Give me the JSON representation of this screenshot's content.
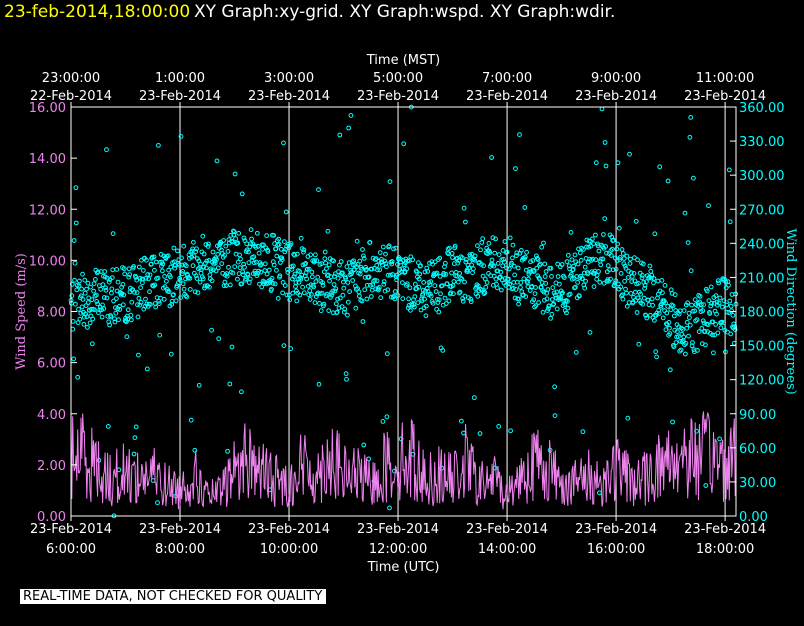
{
  "header": {
    "timestamp": "23-feb-2014,18:00:00",
    "titles": "XY Graph:xy-grid.  XY Graph:wspd.  XY Graph:wdir."
  },
  "notice": "REAL-TIME DATA, NOT CHECKED FOR QUALITY",
  "colors": {
    "background": "#000000",
    "timestamp": "#ffff00",
    "wind_speed": "#ee82ee",
    "wind_direction": "#00ffff",
    "frame": "#ffffff"
  },
  "chart_data": {
    "type": "line",
    "top_axis_label": "Time (MST)",
    "bottom_axis_label": "Time (UTC)",
    "y_left_label": "Wind Speed (m/s)",
    "y_right_label": "Wind Direction (degrees)",
    "x_range_utc_hours": [
      6,
      18.2
    ],
    "y_left_range": [
      0,
      16
    ],
    "y_right_range": [
      0,
      360
    ],
    "grid": "vertical lines every 2 hours",
    "bottom_ticks": [
      {
        "hour": 6,
        "date": "23-Feb-2014",
        "time": "6:00:00"
      },
      {
        "hour": 8,
        "date": "23-Feb-2014",
        "time": "8:00:00"
      },
      {
        "hour": 10,
        "date": "23-Feb-2014",
        "time": "10:00:00"
      },
      {
        "hour": 12,
        "date": "23-Feb-2014",
        "time": "12:00:00"
      },
      {
        "hour": 14,
        "date": "23-Feb-2014",
        "time": "14:00:00"
      },
      {
        "hour": 16,
        "date": "23-Feb-2014",
        "time": "16:00:00"
      },
      {
        "hour": 18,
        "date": "23-Feb-2014",
        "time": "18:00:00"
      }
    ],
    "top_ticks": [
      {
        "hour": 6,
        "time": "23:00:00",
        "date": "22-Feb-2014"
      },
      {
        "hour": 8,
        "time": "1:00:00",
        "date": "23-Feb-2014"
      },
      {
        "hour": 10,
        "time": "3:00:00",
        "date": "23-Feb-2014"
      },
      {
        "hour": 12,
        "time": "5:00:00",
        "date": "23-Feb-2014"
      },
      {
        "hour": 14,
        "time": "7:00:00",
        "date": "23-Feb-2014"
      },
      {
        "hour": 16,
        "time": "9:00:00",
        "date": "23-Feb-2014"
      },
      {
        "hour": 18,
        "time": "11:00:00",
        "date": "23-Feb-2014"
      }
    ],
    "y_left_ticks": [
      "0.00",
      "2.00",
      "4.00",
      "6.00",
      "8.00",
      "10.00",
      "12.00",
      "14.00",
      "16.00"
    ],
    "y_right_ticks": [
      "0.00",
      "30.00",
      "60.00",
      "90.00",
      "120.00",
      "150.00",
      "180.00",
      "210.00",
      "240.00",
      "270.00",
      "300.00",
      "330.00",
      "360.00"
    ],
    "series": [
      {
        "name": "Wind Speed",
        "style": "line",
        "x": [
          6.0,
          6.25,
          6.5,
          6.75,
          7.0,
          7.25,
          7.5,
          7.75,
          8.0,
          8.25,
          8.5,
          8.75,
          9.0,
          9.25,
          9.5,
          9.75,
          10.0,
          10.25,
          10.5,
          10.75,
          11.0,
          11.25,
          11.5,
          11.75,
          12.0,
          12.25,
          12.5,
          12.75,
          13.0,
          13.25,
          13.5,
          13.75,
          14.0,
          14.25,
          14.5,
          14.75,
          15.0,
          15.25,
          15.5,
          15.75,
          16.0,
          16.25,
          16.5,
          16.75,
          17.0,
          17.25,
          17.5,
          17.75,
          18.0,
          18.2
        ],
        "values": [
          2.3,
          2.5,
          1.8,
          1.4,
          1.7,
          1.5,
          1.6,
          1.2,
          1.0,
          1.6,
          0.8,
          0.9,
          1.8,
          2.3,
          1.7,
          1.4,
          1.2,
          2.0,
          1.5,
          2.4,
          1.6,
          1.6,
          1.2,
          1.9,
          2.1,
          2.3,
          1.4,
          1.6,
          1.4,
          2.1,
          1.2,
          1.5,
          0.8,
          1.6,
          2.1,
          1.9,
          1.3,
          1.3,
          1.5,
          1.3,
          1.9,
          1.4,
          1.4,
          1.9,
          2.2,
          2.4,
          2.3,
          2.4,
          2.0,
          2.6
        ],
        "y_range": [
          0,
          4.8
        ]
      },
      {
        "name": "Wind Direction",
        "style": "circles",
        "x": [
          6.0,
          6.25,
          6.5,
          6.75,
          7.0,
          7.25,
          7.5,
          7.75,
          8.0,
          8.25,
          8.5,
          8.75,
          9.0,
          9.25,
          9.5,
          9.75,
          10.0,
          10.25,
          10.5,
          10.75,
          11.0,
          11.25,
          11.5,
          11.75,
          12.0,
          12.25,
          12.5,
          12.75,
          13.0,
          13.25,
          13.5,
          13.75,
          14.0,
          14.25,
          14.5,
          14.75,
          15.0,
          15.25,
          15.5,
          15.75,
          16.0,
          16.25,
          16.5,
          16.75,
          17.0,
          17.25,
          17.5,
          17.75,
          18.0,
          18.2
        ],
        "values": [
          185,
          190,
          195,
          192,
          195,
          200,
          205,
          208,
          215,
          220,
          225,
          218,
          230,
          228,
          225,
          222,
          215,
          220,
          212,
          205,
          200,
          205,
          218,
          215,
          210,
          205,
          200,
          208,
          215,
          210,
          218,
          225,
          220,
          210,
          205,
          198,
          200,
          210,
          225,
          228,
          225,
          205,
          200,
          190,
          175,
          165,
          170,
          180,
          185,
          175
        ],
        "scatter_range": [
          0,
          360
        ]
      }
    ]
  }
}
